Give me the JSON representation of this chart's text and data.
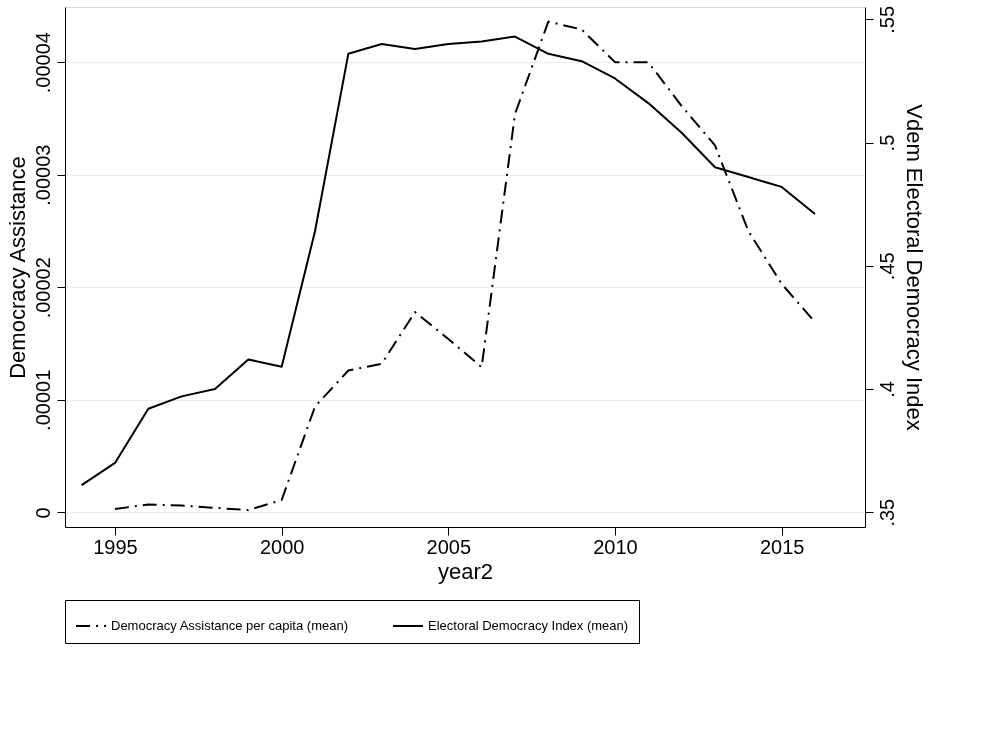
{
  "chart_data": {
    "type": "line",
    "xlabel": "year2",
    "ylabel": "Democracy Assistance",
    "y2label": "Vdem Electoral Democracy Index",
    "xlim": [
      1993.5,
      2017.5
    ],
    "xticks": [
      1995,
      2000,
      2005,
      2010,
      2015
    ],
    "ylim": [
      -1.3e-06,
      4.49e-05
    ],
    "yticks": [
      {
        "value": 0,
        "label": "0"
      },
      {
        "value": 1e-05,
        "label": ".00001"
      },
      {
        "value": 2e-05,
        "label": ".00002"
      },
      {
        "value": 3e-05,
        "label": ".00003"
      },
      {
        "value": 4e-05,
        "label": ".00004"
      }
    ],
    "y2lim": [
      0.344,
      0.555
    ],
    "y2ticks": [
      {
        "value": 0.35,
        "label": ".35"
      },
      {
        "value": 0.4,
        "label": ".4"
      },
      {
        "value": 0.45,
        "label": ".45"
      },
      {
        "value": 0.5,
        "label": ".5"
      },
      {
        "value": 0.55,
        "label": ".55"
      }
    ],
    "grid": "y",
    "legend": "bottom",
    "series": [
      {
        "name": "Democracy Assistance per capita (mean)",
        "color": "#000000",
        "line_style": "dashed",
        "x": [
          1995,
          1996,
          1997,
          1998,
          1999,
          2000,
          2001,
          2002,
          2003,
          2004,
          2005,
          2006,
          2007,
          2008,
          2009,
          2010,
          2011,
          2012,
          2013,
          2014,
          2015,
          2016
        ],
        "values": [
          3e-07,
          7e-07,
          6e-07,
          4e-07,
          2e-07,
          1.1e-06,
          9.4e-06,
          1.26e-05,
          1.32e-05,
          1.78e-05,
          1.54e-05,
          1.29e-05,
          3.54e-05,
          4.36e-05,
          4.29e-05,
          4e-05,
          4e-05,
          3.61e-05,
          3.26e-05,
          2.5e-05,
          2.03e-05,
          1.69e-05
        ]
      },
      {
        "name": "Electoral Democracy Index (mean)",
        "color": "#000000",
        "line_style": "solid",
        "axis": "y2",
        "x": [
          1994,
          1995,
          1996,
          1997,
          1998,
          1999,
          2000,
          2001,
          2002,
          2003,
          2004,
          2005,
          2006,
          2007,
          2008,
          2009,
          2010,
          2011,
          2012,
          2013,
          2014,
          2015,
          2016
        ],
        "values": [
          0.361,
          0.37,
          0.392,
          0.397,
          0.4,
          0.412,
          0.409,
          0.464,
          0.536,
          0.54,
          0.538,
          0.54,
          0.541,
          0.543,
          0.536,
          0.533,
          0.526,
          0.516,
          0.504,
          0.49,
          0.486,
          0.482,
          0.471
        ]
      }
    ]
  }
}
